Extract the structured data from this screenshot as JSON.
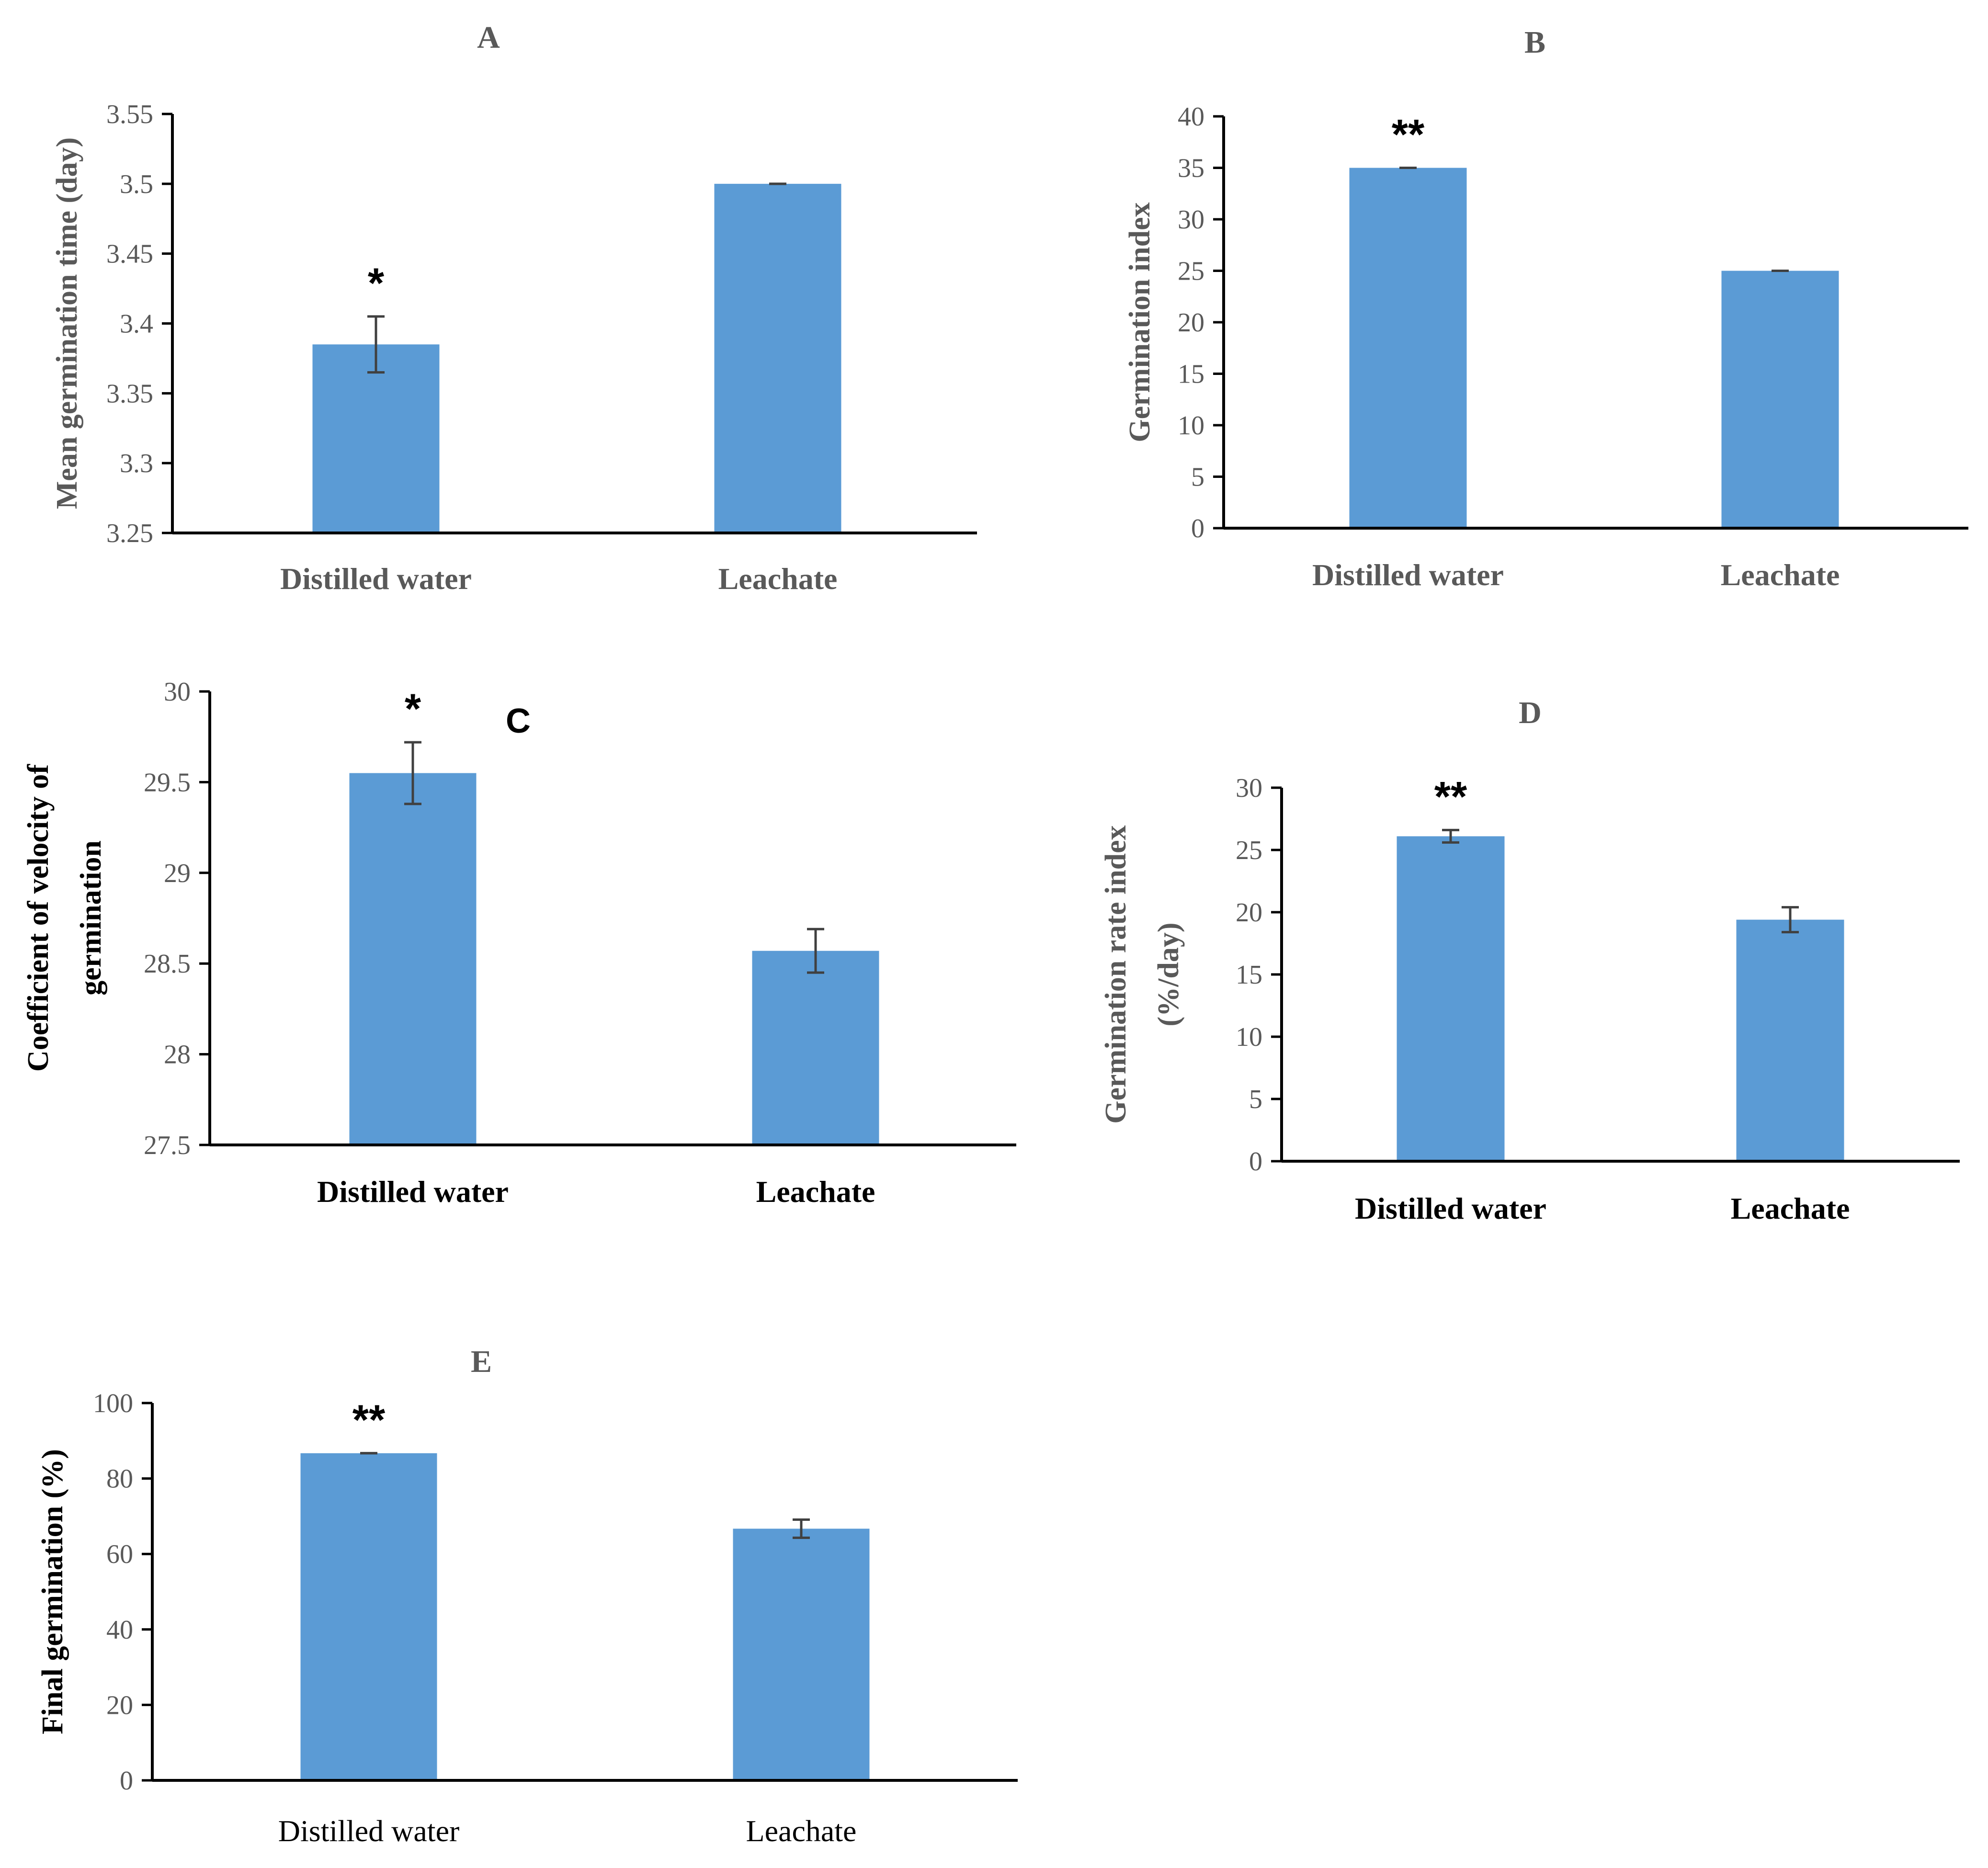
{
  "colors": {
    "bar": "#5B9BD5",
    "axis": "#000000",
    "error_bar": "#404040",
    "text": "#595959"
  },
  "chart_data": [
    {
      "panel": "A",
      "type": "bar",
      "title": "A",
      "categories": [
        "Distilled water",
        "Leachate"
      ],
      "values": [
        3.385,
        3.5
      ],
      "errors": [
        0.02,
        0.0
      ],
      "significance": [
        "*",
        ""
      ],
      "ylabel": "Mean germination time (day)",
      "xlabel": "",
      "ylim": [
        3.25,
        3.55
      ],
      "yticks": [
        "3.25",
        "3.3",
        "3.35",
        "3.4",
        "3.45",
        "3.5",
        "3.55"
      ]
    },
    {
      "panel": "B",
      "type": "bar",
      "title": "B",
      "categories": [
        "Distilled water",
        "Leachate"
      ],
      "values": [
        35,
        25
      ],
      "errors": [
        0.0,
        0.0
      ],
      "significance": [
        "**",
        ""
      ],
      "ylabel": "Germination index",
      "xlabel": "",
      "ylim": [
        0,
        40
      ],
      "yticks": [
        "0",
        "5",
        "10",
        "15",
        "20",
        "25",
        "30",
        "35",
        "40"
      ]
    },
    {
      "panel": "C",
      "type": "bar",
      "title": "C",
      "categories": [
        "Distilled water",
        "Leachate"
      ],
      "values": [
        29.55,
        28.57
      ],
      "errors": [
        0.17,
        0.12
      ],
      "significance": [
        "*",
        ""
      ],
      "ylabel": [
        "Coefficient of velocity of",
        "germination"
      ],
      "xlabel": "",
      "ylim": [
        27.5,
        30
      ],
      "yticks": [
        "27.5",
        "28",
        "28.5",
        "29",
        "29.5",
        "30"
      ]
    },
    {
      "panel": "D",
      "type": "bar",
      "title": "D",
      "categories": [
        "Distilled water",
        "Leachate"
      ],
      "values": [
        26.1,
        19.4
      ],
      "errors": [
        0.5,
        1.0
      ],
      "significance": [
        "**",
        ""
      ],
      "ylabel": [
        "Germination rate index",
        "(%/day)"
      ],
      "xlabel": "",
      "ylim": [
        0,
        30
      ],
      "yticks": [
        "0",
        "5",
        "10",
        "15",
        "20",
        "25",
        "30"
      ]
    },
    {
      "panel": "E",
      "type": "bar",
      "title": "E",
      "categories": [
        "Distilled water",
        "Leachate"
      ],
      "values": [
        86.7,
        66.7
      ],
      "errors": [
        0.0,
        2.4
      ],
      "significance": [
        "**",
        ""
      ],
      "ylabel": "Final germination (%)",
      "xlabel": "",
      "ylim": [
        0,
        100
      ],
      "yticks": [
        "0",
        "20",
        "40",
        "60",
        "80",
        "100"
      ]
    }
  ]
}
